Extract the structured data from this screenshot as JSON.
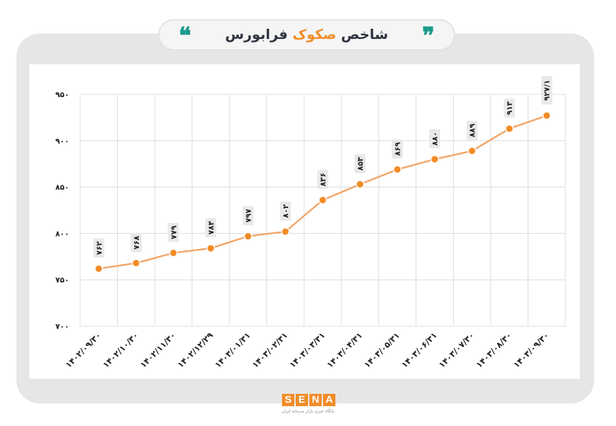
{
  "header": {
    "title_before": "شاخص",
    "title_accent": "صکوک",
    "title_after": "فرابورس",
    "quote_left": "❝",
    "quote_right": "❞"
  },
  "logo": {
    "letters": [
      "S",
      "E",
      "N",
      "A"
    ],
    "subtitle": "پایگاه خبری بازار سرمایه ایران"
  },
  "colors": {
    "line": "#f2a66a",
    "marker": "#f28c28",
    "title_accent": "#f28c28",
    "quote": "#1a9a8a"
  },
  "chart_data": {
    "type": "line",
    "title": "",
    "xlabel": "",
    "ylabel": "",
    "ylim": [
      700,
      950
    ],
    "yticks": [
      700,
      750,
      800,
      850,
      900,
      950
    ],
    "ytick_labels": [
      "۷۰۰",
      "۷۵۰",
      "۸۰۰",
      "۸۵۰",
      "۹۰۰",
      "۹۵۰"
    ],
    "grid": true,
    "categories": [
      "۱۴۰۲/۰۹/۳۰",
      "۱۴۰۲/۱۰/۳۰",
      "۱۴۰۲/۱۱/۳۰",
      "۱۴۰۲/۱۲/۲۹",
      "۱۴۰۳/۰۱/۳۱",
      "۱۴۰۳/۰۲/۳۱",
      "۱۴۰۳/۰۳/۳۱",
      "۱۴۰۳/۰۴/۳۱",
      "۱۴۰۳/۰۵/۳۱",
      "۱۴۰۳/۰۶/۳۱",
      "۱۴۰۳/۰۷/۳۰",
      "۱۴۰۳/۰۸/۳۰",
      "۱۴۰۳/۰۹/۳۰"
    ],
    "values": [
      762,
      768,
      779,
      784,
      797,
      802,
      836,
      853,
      869,
      880,
      889,
      913,
      927.1
    ],
    "value_labels": [
      "۷۶۲",
      "۷۶۸",
      "۷۷۹",
      "۷۸۴",
      "۷۹۷",
      "۸۰۲",
      "۸۳۶",
      "۸۵۳",
      "۸۶۹",
      "۸۸۰",
      "۸۸۹",
      "۹۱۳",
      "۹۲۷/۱"
    ]
  }
}
